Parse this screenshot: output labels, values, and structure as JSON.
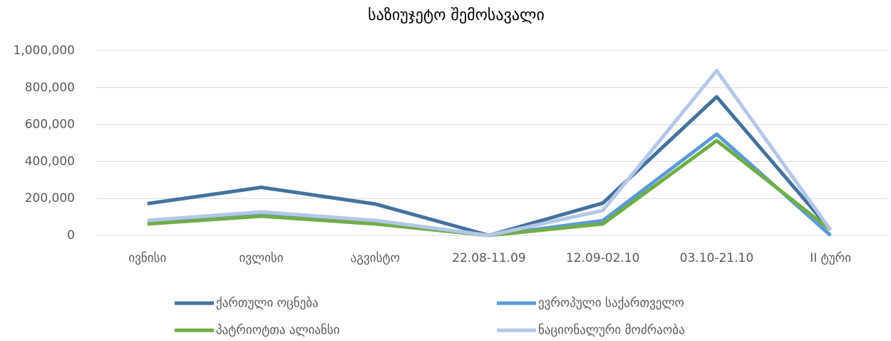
{
  "chart_data": {
    "type": "line",
    "title": "საზიუჯეტო შემოსავალი",
    "categories": [
      "ივნისი",
      "ივლისი",
      "აგვისტო",
      "22.08-11.09",
      "12.09-02.10",
      "03.10-21.10",
      "II ტური"
    ],
    "series": [
      {
        "name": "ქართული ოცნება",
        "color": "#44729d",
        "values": [
          172000,
          260000,
          170000,
          0,
          175000,
          750000,
          30000
        ]
      },
      {
        "name": "ევროპული საქართველო",
        "color": "#5b9bd5",
        "values": [
          70000,
          110000,
          65000,
          0,
          80000,
          548000,
          0
        ]
      },
      {
        "name": "პატრიოტთა ალიანსი",
        "color": "#70ad47",
        "values": [
          62000,
          104000,
          62000,
          0,
          62000,
          513000,
          30000
        ]
      },
      {
        "name": "ნაციონალური მოძრაობა",
        "color": "#b4c7e7",
        "values": [
          81000,
          127000,
          81000,
          0,
          135000,
          892000,
          30000
        ]
      }
    ],
    "ylim": [
      0,
      1000000
    ],
    "yticks": [
      0,
      {
        "value": 200000,
        "label": "200,000"
      },
      {
        "value": 400000,
        "label": "400,000"
      },
      {
        "value": 600000,
        "label": "600,000"
      },
      {
        "value": 800000,
        "label": "800,000"
      },
      {
        "value": 1000000,
        "label": "1,000,000"
      }
    ],
    "grid": true,
    "legend": "bottom"
  }
}
